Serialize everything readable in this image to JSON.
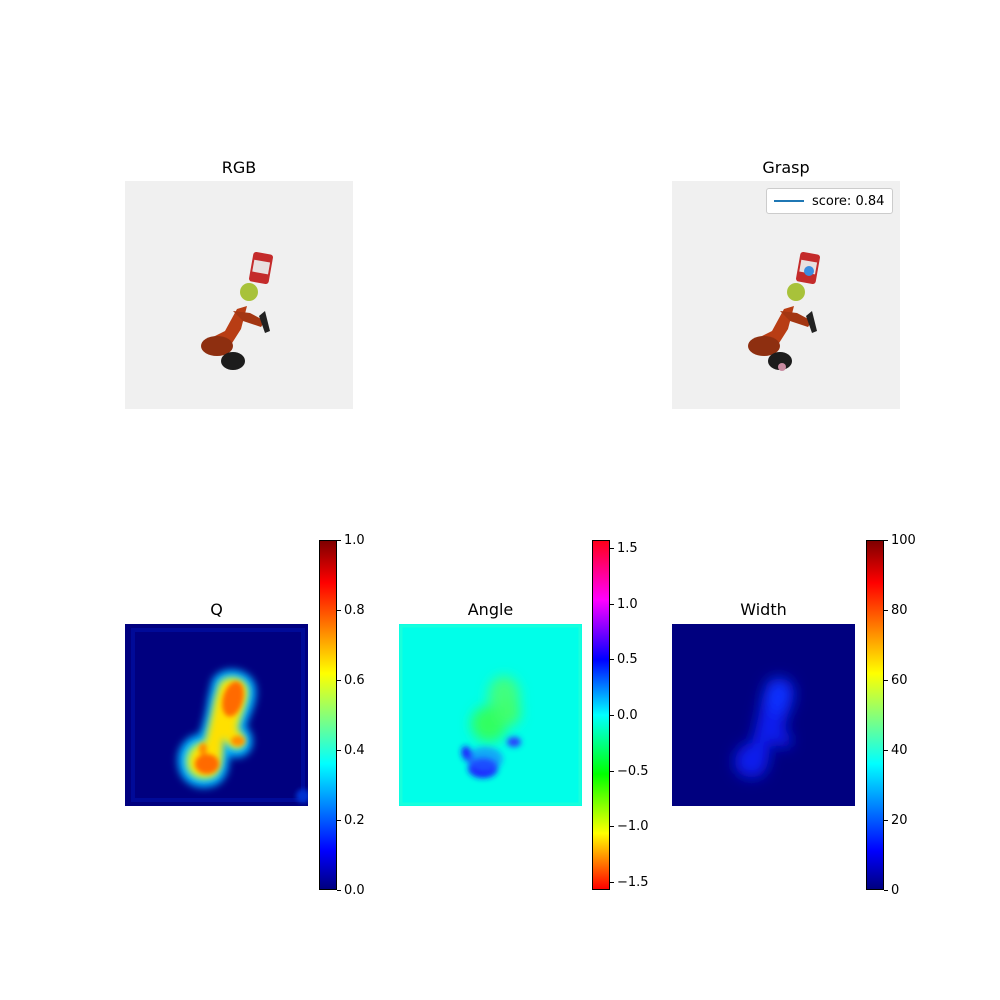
{
  "panels": {
    "rgb": {
      "title": "RGB"
    },
    "grasp": {
      "title": "Grasp",
      "legend_label": "score: 0.84",
      "legend_color": "#1f77b4"
    },
    "q": {
      "title": "Q"
    },
    "angle": {
      "title": "Angle"
    },
    "width": {
      "title": "Width"
    }
  },
  "colors": {
    "background_gray": "#f0f0f0",
    "arm_orange": "#b83d14",
    "ball_green": "#a8c23a",
    "can_red": "#c42b2b"
  },
  "chart_data": [
    {
      "type": "image",
      "title": "RGB"
    },
    {
      "type": "image",
      "title": "Grasp",
      "legend": [
        {
          "label": "score: 0.84",
          "color": "#1f77b4"
        }
      ],
      "legend_placement": "top-right"
    },
    {
      "type": "heatmap",
      "title": "Q",
      "colormap": "jet",
      "colorbar_range": [
        0,
        1.0
      ],
      "colorbar_ticks": [
        "0.0",
        "0.2",
        "0.4",
        "0.6",
        "0.8",
        "1.0"
      ]
    },
    {
      "type": "heatmap",
      "title": "Angle",
      "colormap": "hsv",
      "colorbar_range": [
        -1.5708,
        1.5708
      ],
      "colorbar_ticks": [
        "−1.5",
        "−1.0",
        "−0.5",
        "0.0",
        "0.5",
        "1.0",
        "1.5"
      ]
    },
    {
      "type": "heatmap",
      "title": "Width",
      "colormap": "jet",
      "colorbar_range": [
        0,
        100
      ],
      "colorbar_ticks": [
        "0",
        "20",
        "40",
        "60",
        "80",
        "100"
      ]
    }
  ]
}
